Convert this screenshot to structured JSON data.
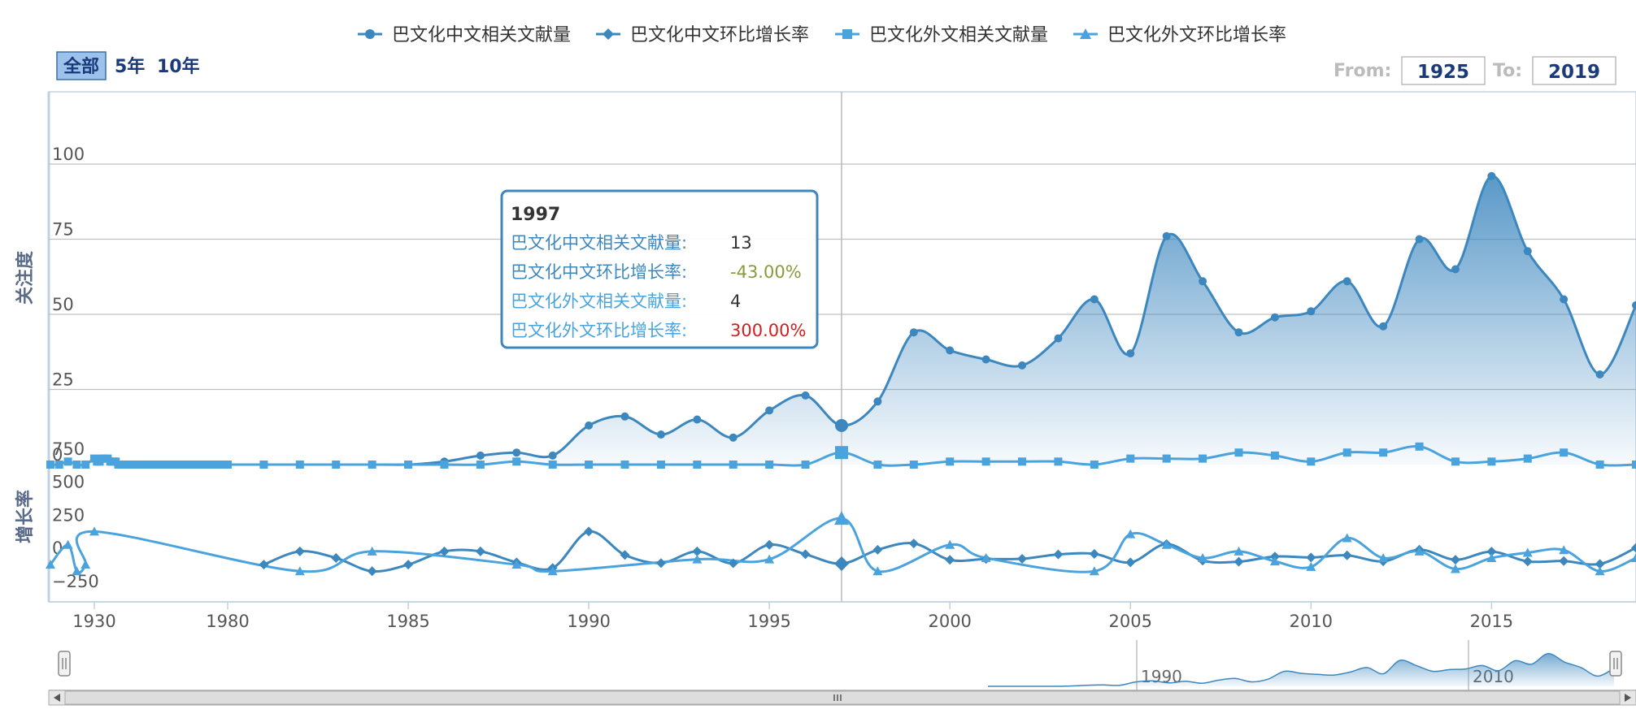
{
  "legend": [
    {
      "label": "巴文化中文相关文献量",
      "marker": "circle",
      "color": "#3d87bf"
    },
    {
      "label": "巴文化中文环比增长率",
      "marker": "diamond",
      "color": "#3d87bf"
    },
    {
      "label": "巴文化外文相关文献量",
      "marker": "square",
      "color": "#4aa3dd"
    },
    {
      "label": "巴文化外文环比增长率",
      "marker": "triangle",
      "color": "#4aa3dd"
    }
  ],
  "range_selector": {
    "buttons": [
      "全部",
      "5年",
      "10年"
    ],
    "active": "全部",
    "from_label": "From:",
    "from_value": "1925",
    "to_label": "To:",
    "to_value": "2019"
  },
  "tooltip": {
    "year": "1997",
    "rows": [
      {
        "label": "巴文化中文相关文献量:",
        "value": "13",
        "color": "#3d87bf",
        "value_color": "#333333"
      },
      {
        "label": "巴文化中文环比增长率:",
        "value": "-43.00%",
        "color": "#3d87bf",
        "value_color": "#8a9a3a"
      },
      {
        "label": "巴文化外文相关文献量:",
        "value": "4",
        "color": "#4aa3dd",
        "value_color": "#333333"
      },
      {
        "label": "巴文化外文环比增长率:",
        "value": "300.00%",
        "color": "#4aa3dd",
        "value_color": "#cc2222"
      }
    ]
  },
  "navigator": {
    "labels": [
      "1990",
      "2010"
    ]
  },
  "colors": {
    "series_dark": "#3d87bf",
    "series_light": "#4aa3dd",
    "axis": "#c0d0e0",
    "grid": "#c0c0c0",
    "button_active_bg": "#9cc2ec"
  },
  "chart_data": {
    "type": "line",
    "x_range": [
      1925,
      2019
    ],
    "xaxis_ticks": [
      1930,
      1980,
      1985,
      1990,
      1995,
      2000,
      2005,
      2010,
      2015
    ],
    "panes": [
      {
        "name": "count",
        "ylabel": "关注度",
        "yticks": [
          0,
          25,
          50,
          75,
          100
        ],
        "ylim": [
          0,
          125
        ],
        "series": [
          {
            "name": "巴文化中文相关文献量",
            "marker": "circle",
            "area": true,
            "points": [
              [
                1981,
                0
              ],
              [
                1984,
                0
              ],
              [
                1985,
                0
              ],
              [
                1986,
                1
              ],
              [
                1987,
                3
              ],
              [
                1988,
                4
              ],
              [
                1989,
                3
              ],
              [
                1990,
                13
              ],
              [
                1991,
                16
              ],
              [
                1992,
                10
              ],
              [
                1993,
                15
              ],
              [
                1994,
                9
              ],
              [
                1995,
                18
              ],
              [
                1996,
                23
              ],
              [
                1997,
                13
              ],
              [
                1998,
                21
              ],
              [
                1999,
                44
              ],
              [
                2000,
                38
              ],
              [
                2001,
                35
              ],
              [
                2002,
                33
              ],
              [
                2003,
                42
              ],
              [
                2004,
                55
              ],
              [
                2005,
                37
              ],
              [
                2006,
                76
              ],
              [
                2007,
                61
              ],
              [
                2008,
                44
              ],
              [
                2009,
                49
              ],
              [
                2010,
                51
              ],
              [
                2011,
                61
              ],
              [
                2012,
                46
              ],
              [
                2013,
                75
              ],
              [
                2014,
                65
              ],
              [
                2015,
                96
              ],
              [
                2016,
                71
              ],
              [
                2017,
                55
              ],
              [
                2018,
                30
              ],
              [
                2019,
                53
              ]
            ]
          },
          {
            "name": "巴文化外文相关文献量",
            "marker": "square",
            "area": false,
            "points": [
              [
                1925,
                0
              ],
              [
                1926,
                0
              ],
              [
                1927,
                1
              ],
              [
                1928,
                0
              ],
              [
                1929,
                0
              ],
              [
                1930,
                2
              ],
              [
                1931,
                1
              ],
              [
                1932,
                1
              ],
              [
                1933,
                2
              ],
              [
                1934,
                2
              ],
              [
                1935,
                2
              ],
              [
                1936,
                1
              ],
              [
                1937,
                1
              ],
              [
                1938,
                1
              ],
              [
                1939,
                0
              ],
              [
                1940,
                0
              ],
              [
                1941,
                0
              ],
              [
                1942,
                0
              ],
              [
                1943,
                0
              ],
              [
                1944,
                0
              ],
              [
                1945,
                0
              ],
              [
                1946,
                0
              ],
              [
                1947,
                0
              ],
              [
                1948,
                0
              ],
              [
                1949,
                0
              ],
              [
                1950,
                0
              ],
              [
                1951,
                0
              ],
              [
                1952,
                0
              ],
              [
                1953,
                0
              ],
              [
                1954,
                0
              ],
              [
                1955,
                0
              ],
              [
                1956,
                0
              ],
              [
                1957,
                0
              ],
              [
                1958,
                0
              ],
              [
                1959,
                0
              ],
              [
                1960,
                0
              ],
              [
                1961,
                0
              ],
              [
                1962,
                0
              ],
              [
                1963,
                0
              ],
              [
                1964,
                0
              ],
              [
                1965,
                0
              ],
              [
                1966,
                0
              ],
              [
                1967,
                0
              ],
              [
                1968,
                0
              ],
              [
                1969,
                0
              ],
              [
                1970,
                0
              ],
              [
                1971,
                0
              ],
              [
                1972,
                0
              ],
              [
                1973,
                0
              ],
              [
                1974,
                0
              ],
              [
                1975,
                0
              ],
              [
                1976,
                0
              ],
              [
                1977,
                0
              ],
              [
                1978,
                0
              ],
              [
                1979,
                0
              ],
              [
                1980,
                0
              ],
              [
                1981,
                0
              ],
              [
                1982,
                0
              ],
              [
                1983,
                0
              ],
              [
                1984,
                0
              ],
              [
                1985,
                0
              ],
              [
                1986,
                0
              ],
              [
                1987,
                0
              ],
              [
                1988,
                1
              ],
              [
                1989,
                0
              ],
              [
                1990,
                0
              ],
              [
                1991,
                0
              ],
              [
                1992,
                0
              ],
              [
                1993,
                0
              ],
              [
                1994,
                0
              ],
              [
                1995,
                0
              ],
              [
                1996,
                0
              ],
              [
                1997,
                4
              ],
              [
                1998,
                0
              ],
              [
                1999,
                0
              ],
              [
                2000,
                1
              ],
              [
                2001,
                1
              ],
              [
                2002,
                1
              ],
              [
                2003,
                1
              ],
              [
                2004,
                0
              ],
              [
                2005,
                2
              ],
              [
                2006,
                2
              ],
              [
                2007,
                2
              ],
              [
                2008,
                4
              ],
              [
                2009,
                3
              ],
              [
                2010,
                1
              ],
              [
                2011,
                4
              ],
              [
                2012,
                4
              ],
              [
                2013,
                6
              ],
              [
                2014,
                1
              ],
              [
                2015,
                1
              ],
              [
                2016,
                2
              ],
              [
                2017,
                4
              ],
              [
                2018,
                0
              ],
              [
                2019,
                0
              ]
            ]
          }
        ]
      },
      {
        "name": "growth",
        "ylabel": "增长率",
        "yticks": [
          -250,
          0,
          250,
          500,
          750
        ],
        "ylim": [
          -300,
          800
        ],
        "series": [
          {
            "name": "巴文化中文环比增长率",
            "marker": "diamond",
            "points": [
              [
                1981,
                -50
              ],
              [
                1982,
                50
              ],
              [
                1983,
                0
              ],
              [
                1984,
                -100
              ],
              [
                1985,
                -50
              ],
              [
                1986,
                50
              ],
              [
                1987,
                50
              ],
              [
                1988,
                -33
              ],
              [
                1989,
                -75
              ],
              [
                1990,
                200
              ],
              [
                1991,
                23
              ],
              [
                1992,
                -38
              ],
              [
                1993,
                50
              ],
              [
                1994,
                -40
              ],
              [
                1995,
                100
              ],
              [
                1996,
                28
              ],
              [
                1997,
                -43
              ],
              [
                1998,
                62
              ],
              [
                1999,
                110
              ],
              [
                2000,
                -14
              ],
              [
                2001,
                -8
              ],
              [
                2002,
                -6
              ],
              [
                2003,
                27
              ],
              [
                2004,
                31
              ],
              [
                2005,
                -33
              ],
              [
                2006,
                105
              ],
              [
                2007,
                -20
              ],
              [
                2008,
                -28
              ],
              [
                2009,
                11
              ],
              [
                2010,
                4
              ],
              [
                2011,
                20
              ],
              [
                2012,
                -25
              ],
              [
                2013,
                63
              ],
              [
                2014,
                -13
              ],
              [
                2015,
                48
              ],
              [
                2016,
                -26
              ],
              [
                2017,
                -23
              ],
              [
                2018,
                -45
              ],
              [
                2019,
                77
              ]
            ]
          },
          {
            "name": "巴文化外文环比增长率",
            "marker": "triangle",
            "points": [
              [
                1925,
                -50
              ],
              [
                1927,
                100
              ],
              [
                1928,
                -100
              ],
              [
                1929,
                -50
              ],
              [
                1930,
                200
              ],
              [
                1982,
                -100
              ],
              [
                1984,
                50
              ],
              [
                1988,
                -50
              ],
              [
                1989,
                -100
              ],
              [
                1993,
                -10
              ],
              [
                1995,
                -10
              ],
              [
                1997,
                300
              ],
              [
                1998,
                -100
              ],
              [
                2000,
                100
              ],
              [
                2001,
                0
              ],
              [
                2004,
                -100
              ],
              [
                2005,
                180
              ],
              [
                2006,
                100
              ],
              [
                2007,
                0
              ],
              [
                2008,
                50
              ],
              [
                2009,
                -25
              ],
              [
                2010,
                -67
              ],
              [
                2011,
                150
              ],
              [
                2012,
                0
              ],
              [
                2013,
                50
              ],
              [
                2014,
                -83
              ],
              [
                2015,
                0
              ],
              [
                2016,
                40
              ],
              [
                2017,
                60
              ],
              [
                2018,
                -100
              ],
              [
                2019,
                0
              ]
            ]
          }
        ]
      }
    ]
  }
}
